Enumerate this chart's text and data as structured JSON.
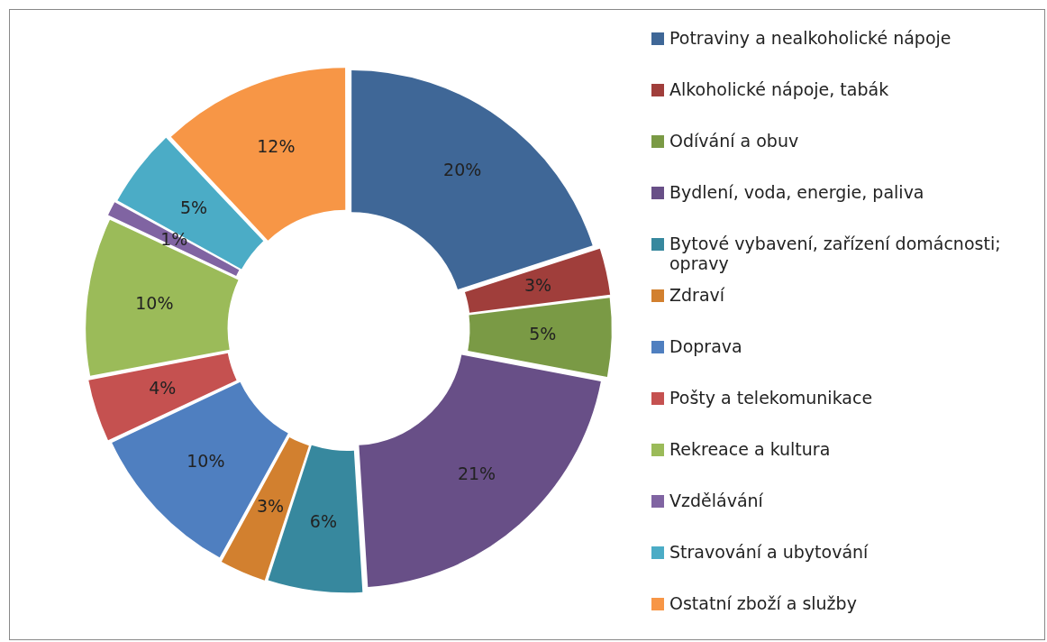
{
  "chart_data": {
    "type": "donut",
    "categories": [
      "Potraviny a nealkoholické nápoje",
      "Alkoholické nápoje, tabák",
      "Odívání a obuv",
      "Bydlení, voda, energie, paliva",
      "Bytové vybavení, zařízení domácnosti; opravy",
      "Zdraví",
      "Doprava",
      "Pošty a telekomunikace",
      "Rekreace a kultura",
      "Vzdělávání",
      "Stravování a ubytování",
      "Ostatní zboží a služby"
    ],
    "values": [
      20,
      3,
      5,
      21,
      6,
      3,
      10,
      4,
      10,
      1,
      5,
      12
    ],
    "value_labels": [
      "20%",
      "3%",
      "5%",
      "21%",
      "6%",
      "3%",
      "10%",
      "4%",
      "10%",
      "1%",
      "5%",
      "12%"
    ],
    "colors": [
      "#3f6797",
      "#a03e3b",
      "#7a9a45",
      "#684f87",
      "#37889e",
      "#d2802f",
      "#4f7fc0",
      "#c55150",
      "#9bbb59",
      "#8064a2",
      "#4bacc6",
      "#f79646"
    ],
    "legend": "right"
  }
}
